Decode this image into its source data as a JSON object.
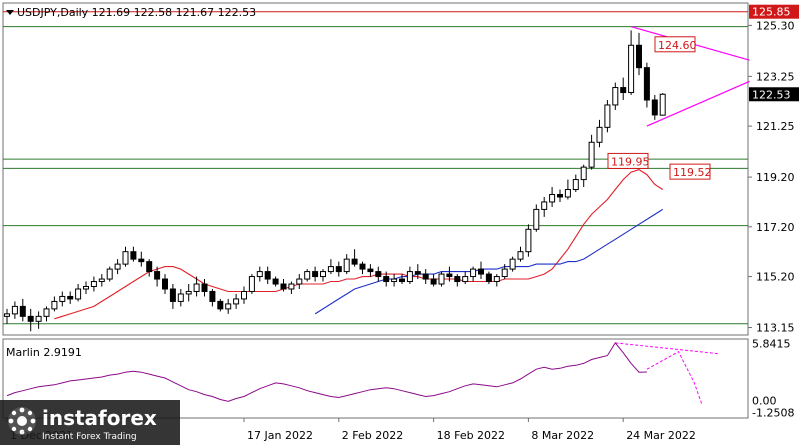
{
  "chart_data": [
    {
      "type": "candlestick",
      "title": "USDJPY,Daily  121.69 122.58 121.67 122.53",
      "y_ticks": [
        "125.30",
        "123.25",
        "121.25",
        "119.20",
        "117.20",
        "115.20",
        "113.15"
      ],
      "ylim": [
        112.85,
        126.2
      ],
      "x_ticks": [
        {
          "label": "1 Dec 2021",
          "i": 0
        },
        {
          "label": "17 Jan 2022",
          "i": 30
        },
        {
          "label": "2 Feb 2022",
          "i": 42
        },
        {
          "label": "18 Feb 2022",
          "i": 54
        },
        {
          "label": "8 Mar 2022",
          "i": 66
        },
        {
          "label": "24 Mar 2022",
          "i": 78
        }
      ],
      "current_price_label": "122.53",
      "level_labels": [
        "125.85",
        "124.60",
        "119.95",
        "119.52"
      ],
      "horizontal_levels": [
        125.85,
        125.25,
        119.92,
        119.55,
        117.25,
        113.3
      ],
      "support_resistance_trendlines": [
        {
          "color": "#ff00ff",
          "from": [
            79,
            125.25
          ],
          "to": [
            94,
            123.9
          ]
        },
        {
          "color": "#ff00ff",
          "from": [
            81,
            121.25
          ],
          "to": [
            94,
            123.05
          ]
        }
      ],
      "ohlc": [
        [
          113.6,
          113.9,
          113.3,
          113.7
        ],
        [
          113.7,
          114.2,
          113.5,
          114.0
        ],
        [
          114.0,
          114.3,
          113.4,
          113.6
        ],
        [
          113.6,
          113.9,
          113.0,
          113.4
        ],
        [
          113.4,
          113.8,
          113.1,
          113.6
        ],
        [
          113.6,
          114.0,
          113.4,
          113.9
        ],
        [
          113.9,
          114.4,
          113.8,
          114.2
        ],
        [
          114.2,
          114.6,
          114.0,
          114.4
        ],
        [
          114.4,
          114.6,
          114.1,
          114.3
        ],
        [
          114.3,
          114.9,
          114.2,
          114.7
        ],
        [
          114.7,
          115.0,
          114.5,
          114.8
        ],
        [
          114.8,
          115.2,
          114.6,
          115.0
        ],
        [
          115.0,
          115.3,
          114.8,
          115.1
        ],
        [
          115.1,
          115.6,
          115.0,
          115.5
        ],
        [
          115.5,
          115.9,
          115.3,
          115.7
        ],
        [
          115.7,
          116.4,
          115.6,
          116.2
        ],
        [
          116.2,
          116.4,
          115.8,
          115.9
        ],
        [
          115.9,
          116.2,
          115.6,
          115.8
        ],
        [
          115.8,
          115.9,
          115.2,
          115.4
        ],
        [
          115.4,
          115.6,
          114.8,
          115.1
        ],
        [
          115.1,
          115.3,
          114.5,
          114.7
        ],
        [
          114.7,
          114.9,
          113.9,
          114.2
        ],
        [
          114.2,
          114.7,
          114.0,
          114.5
        ],
        [
          114.5,
          114.9,
          114.2,
          114.6
        ],
        [
          114.6,
          115.2,
          114.4,
          114.9
        ],
        [
          114.9,
          115.1,
          114.4,
          114.6
        ],
        [
          114.6,
          114.7,
          114.0,
          114.2
        ],
        [
          114.2,
          114.3,
          113.8,
          113.9
        ],
        [
          113.9,
          114.3,
          113.7,
          114.1
        ],
        [
          114.1,
          114.5,
          113.9,
          114.3
        ],
        [
          114.3,
          114.8,
          114.1,
          114.6
        ],
        [
          114.6,
          115.3,
          114.5,
          115.2
        ],
        [
          115.2,
          115.6,
          115.0,
          115.4
        ],
        [
          115.4,
          115.6,
          114.9,
          115.1
        ],
        [
          115.1,
          115.2,
          114.8,
          114.9
        ],
        [
          114.9,
          115.1,
          114.6,
          114.7
        ],
        [
          114.7,
          115.0,
          114.5,
          114.9
        ],
        [
          114.9,
          115.3,
          114.7,
          115.1
        ],
        [
          115.1,
          115.5,
          115.0,
          115.4
        ],
        [
          115.4,
          115.6,
          115.0,
          115.2
        ],
        [
          115.2,
          115.5,
          115.0,
          115.4
        ],
        [
          115.4,
          115.9,
          115.3,
          115.6
        ],
        [
          115.6,
          115.8,
          115.2,
          115.4
        ],
        [
          115.4,
          116.1,
          115.3,
          115.9
        ],
        [
          115.9,
          116.3,
          115.6,
          115.7
        ],
        [
          115.7,
          115.8,
          115.3,
          115.5
        ],
        [
          115.5,
          115.7,
          115.2,
          115.4
        ],
        [
          115.4,
          115.6,
          115.0,
          115.2
        ],
        [
          115.2,
          115.4,
          114.8,
          115.0
        ],
        [
          115.0,
          115.3,
          114.8,
          115.1
        ],
        [
          115.1,
          115.3,
          114.9,
          115.0
        ],
        [
          115.0,
          115.6,
          114.9,
          115.4
        ],
        [
          115.4,
          115.7,
          115.1,
          115.3
        ],
        [
          115.3,
          115.5,
          114.9,
          115.1
        ],
        [
          115.1,
          115.3,
          114.8,
          114.9
        ],
        [
          114.9,
          115.4,
          114.8,
          115.3
        ],
        [
          115.3,
          115.6,
          115.0,
          115.2
        ],
        [
          115.2,
          115.3,
          114.8,
          115.0
        ],
        [
          115.0,
          115.4,
          114.9,
          115.2
        ],
        [
          115.2,
          115.6,
          115.0,
          115.5
        ],
        [
          115.5,
          115.8,
          115.1,
          115.3
        ],
        [
          115.3,
          115.4,
          114.9,
          115.0
        ],
        [
          115.0,
          115.3,
          114.8,
          115.2
        ],
        [
          115.2,
          115.7,
          115.1,
          115.5
        ],
        [
          115.5,
          116.0,
          115.4,
          115.9
        ],
        [
          115.9,
          116.4,
          115.8,
          116.2
        ],
        [
          116.2,
          117.3,
          116.0,
          117.1
        ],
        [
          117.1,
          118.1,
          117.0,
          117.9
        ],
        [
          117.9,
          118.4,
          117.6,
          118.2
        ],
        [
          118.2,
          118.8,
          118.0,
          118.5
        ],
        [
          118.5,
          118.7,
          118.2,
          118.4
        ],
        [
          118.4,
          119.1,
          118.3,
          118.7
        ],
        [
          118.7,
          119.3,
          118.6,
          119.1
        ],
        [
          119.1,
          119.7,
          118.8,
          119.6
        ],
        [
          119.6,
          120.9,
          119.5,
          120.6
        ],
        [
          120.6,
          121.5,
          120.4,
          121.2
        ],
        [
          121.2,
          122.3,
          121.0,
          122.1
        ],
        [
          122.1,
          123.0,
          121.9,
          122.8
        ],
        [
          122.8,
          123.2,
          122.3,
          122.6
        ],
        [
          122.6,
          125.1,
          122.5,
          124.5
        ],
        [
          124.5,
          125.0,
          123.3,
          123.6
        ],
        [
          123.6,
          123.8,
          122.0,
          122.3
        ],
        [
          122.3,
          122.5,
          121.5,
          121.7
        ],
        [
          121.69,
          122.58,
          121.67,
          122.53
        ]
      ],
      "moving_averages": [
        {
          "name": "red",
          "color": "#e0202a",
          "values": [
            113.5,
            113.6,
            113.7,
            113.8,
            113.9,
            114.0,
            114.2,
            114.4,
            114.6,
            114.8,
            115.0,
            115.2,
            115.4,
            115.5,
            115.6,
            115.6,
            115.5,
            115.3,
            115.1,
            114.9,
            114.8,
            114.7,
            114.6,
            114.6,
            114.6,
            114.6,
            114.6,
            114.6,
            114.6,
            114.7,
            114.8,
            114.9,
            114.9,
            114.9,
            114.9,
            115.0,
            115.0,
            115.1,
            115.1,
            115.2,
            115.2,
            115.3,
            115.3,
            115.3,
            115.3,
            115.2,
            115.2,
            115.1,
            115.1,
            115.1,
            115.1,
            115.1,
            115.0,
            115.0,
            115.0,
            115.0,
            115.0,
            115.1,
            115.1,
            115.1,
            115.1,
            115.2,
            115.3,
            115.5,
            115.9,
            116.3,
            116.8,
            117.3,
            117.7,
            118.0,
            118.3,
            118.7,
            119.1,
            119.4,
            119.5,
            119.3,
            118.9,
            118.7
          ]
        },
        {
          "name": "blue",
          "color": "#1f2fc9",
          "values": [
            113.7,
            113.9,
            114.1,
            114.3,
            114.5,
            114.7,
            114.8,
            114.9,
            115.0,
            115.1,
            115.1,
            115.2,
            115.2,
            115.3,
            115.3,
            115.3,
            115.4,
            115.4,
            115.4,
            115.4,
            115.4,
            115.5,
            115.5,
            115.5,
            115.6,
            115.6,
            115.6,
            115.6,
            115.7,
            115.7,
            115.7,
            115.7,
            115.8,
            115.8,
            115.9,
            116.1,
            116.3,
            116.5,
            116.7,
            116.9,
            117.1,
            117.3,
            117.5,
            117.7,
            117.9
          ]
        }
      ]
    },
    {
      "type": "line",
      "title": "Marlin 2.9191",
      "y_ticks": [
        "5.8415",
        "0.00",
        "-1.2508"
      ],
      "ylim": [
        -1.8,
        6.3
      ],
      "values": [
        0.5,
        0.8,
        1.0,
        1.2,
        1.4,
        1.5,
        1.6,
        1.8,
        2.0,
        2.1,
        2.2,
        2.3,
        2.4,
        2.6,
        2.7,
        2.9,
        3.0,
        2.9,
        2.7,
        2.5,
        2.3,
        1.9,
        1.5,
        1.1,
        0.9,
        0.6,
        0.4,
        0.1,
        -0.1,
        0.2,
        0.4,
        0.8,
        1.2,
        1.5,
        1.8,
        1.7,
        1.5,
        1.3,
        1.0,
        0.8,
        0.6,
        0.4,
        0.3,
        0.5,
        0.7,
        0.9,
        1.1,
        1.2,
        1.3,
        1.2,
        1.0,
        0.8,
        0.6,
        0.4,
        0.5,
        0.7,
        0.9,
        1.2,
        1.5,
        1.7,
        1.6,
        1.5,
        1.4,
        1.6,
        1.8,
        2.2,
        2.7,
        3.2,
        3.4,
        3.2,
        3.3,
        3.5,
        3.6,
        3.8,
        4.2,
        4.4,
        4.6,
        5.9,
        4.9,
        3.8,
        2.9,
        2.9191
      ]
    }
  ]
}
